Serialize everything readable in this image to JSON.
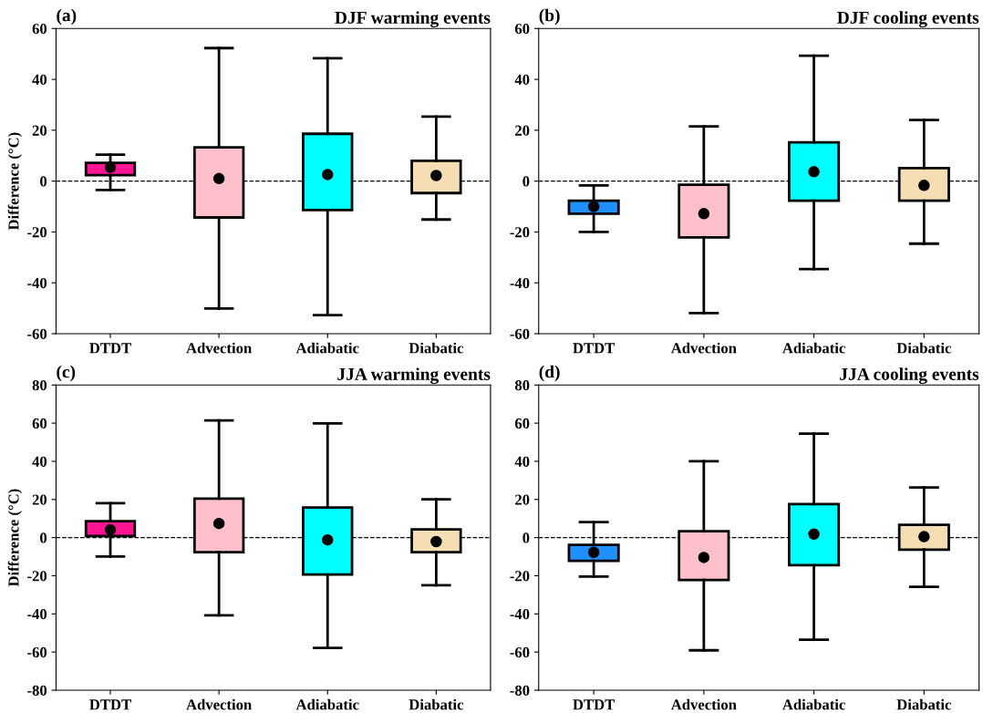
{
  "chart_data": [
    {
      "type": "box",
      "title": "DJF warming events",
      "annotations": [
        "(a)"
      ],
      "ylabel": "Difference (°C)",
      "categories": [
        "DTDT",
        "Advection",
        "Adiabatic",
        "Diabatic"
      ],
      "colors": [
        "#ff1493",
        "#ffc0cb",
        "#00ffff",
        "#f5deb3"
      ],
      "ylim": [
        -60,
        60
      ],
      "yticks": [
        -60,
        -40,
        -20,
        0,
        20,
        40,
        60
      ],
      "grid": false,
      "ref_lines": [
        {
          "axis": "y",
          "value": 0,
          "line_style": "dashed",
          "color": "#000000"
        }
      ],
      "boxes": [
        {
          "low": -3.5,
          "q1": 2.3,
          "q3": 7.2,
          "high": 10.4,
          "mean": 5.4
        },
        {
          "low": -50.1,
          "q1": -14.3,
          "q3": 13.3,
          "high": 52.3,
          "mean": 1.0
        },
        {
          "low": -52.7,
          "q1": -11.4,
          "q3": 18.6,
          "high": 48.3,
          "mean": 2.6
        },
        {
          "low": -15.1,
          "q1": -4.7,
          "q3": 8.0,
          "high": 25.4,
          "mean": 2.2
        }
      ]
    },
    {
      "type": "box",
      "title": "DJF cooling events",
      "annotations": [
        "(b)"
      ],
      "categories": [
        "DTDT",
        "Advection",
        "Adiabatic",
        "Diabatic"
      ],
      "colors": [
        "#1e90ff",
        "#ffc0cb",
        "#00ffff",
        "#f5deb3"
      ],
      "ylim": [
        -60,
        60
      ],
      "yticks": [
        -60,
        -40,
        -20,
        0,
        20,
        40,
        60
      ],
      "grid": false,
      "ref_lines": [
        {
          "axis": "y",
          "value": 0,
          "line_style": "dashed",
          "color": "#000000"
        }
      ],
      "boxes": [
        {
          "low": -20.0,
          "q1": -12.8,
          "q3": -7.7,
          "high": -1.7,
          "mean": -10.0
        },
        {
          "low": -51.9,
          "q1": -22.1,
          "q3": -1.4,
          "high": 21.5,
          "mean": -12.8
        },
        {
          "low": -34.6,
          "q1": -7.7,
          "q3": 15.2,
          "high": 49.3,
          "mean": 3.7
        },
        {
          "low": -24.6,
          "q1": -7.7,
          "q3": 5.1,
          "high": 24.0,
          "mean": -1.7
        }
      ]
    },
    {
      "type": "box",
      "title": "JJA warming events",
      "annotations": [
        "(c)"
      ],
      "ylabel": "Difference (°C)",
      "categories": [
        "DTDT",
        "Advection",
        "Adiabatic",
        "Diabatic"
      ],
      "colors": [
        "#ff1493",
        "#ffc0cb",
        "#00ffff",
        "#f5deb3"
      ],
      "ylim": [
        -80,
        80
      ],
      "yticks": [
        -80,
        -60,
        -40,
        -20,
        0,
        20,
        40,
        60,
        80
      ],
      "grid": false,
      "ref_lines": [
        {
          "axis": "y",
          "value": 0,
          "line_style": "dashed",
          "color": "#000000"
        }
      ],
      "boxes": [
        {
          "low": -9.9,
          "q1": 0.8,
          "q3": 8.6,
          "high": 18.1,
          "mean": 4.1
        },
        {
          "low": -40.8,
          "q1": -7.7,
          "q3": 20.4,
          "high": 61.4,
          "mean": 7.4
        },
        {
          "low": -57.8,
          "q1": -19.4,
          "q3": 15.8,
          "high": 59.9,
          "mean": -1.2
        },
        {
          "low": -25.0,
          "q1": -7.6,
          "q3": 4.3,
          "high": 20.1,
          "mean": -2.1
        }
      ]
    },
    {
      "type": "box",
      "title": "JJA cooling events",
      "annotations": [
        "(d)"
      ],
      "categories": [
        "DTDT",
        "Advection",
        "Adiabatic",
        "Diabatic"
      ],
      "colors": [
        "#1e90ff",
        "#ffc0cb",
        "#00ffff",
        "#f5deb3"
      ],
      "ylim": [
        -80,
        80
      ],
      "yticks": [
        -80,
        -60,
        -40,
        -20,
        0,
        20,
        40,
        60,
        80
      ],
      "grid": false,
      "ref_lines": [
        {
          "axis": "y",
          "value": 0,
          "line_style": "dashed",
          "color": "#000000"
        }
      ],
      "boxes": [
        {
          "low": -20.4,
          "q1": -12.2,
          "q3": -3.8,
          "high": 8.1,
          "mean": -7.7
        },
        {
          "low": -59.1,
          "q1": -22.2,
          "q3": 3.3,
          "high": 40.0,
          "mean": -10.4
        },
        {
          "low": -53.5,
          "q1": -14.5,
          "q3": 17.6,
          "high": 54.5,
          "mean": 1.8
        },
        {
          "low": -25.8,
          "q1": -6.3,
          "q3": 6.7,
          "high": 26.3,
          "mean": 0.5
        }
      ]
    }
  ]
}
